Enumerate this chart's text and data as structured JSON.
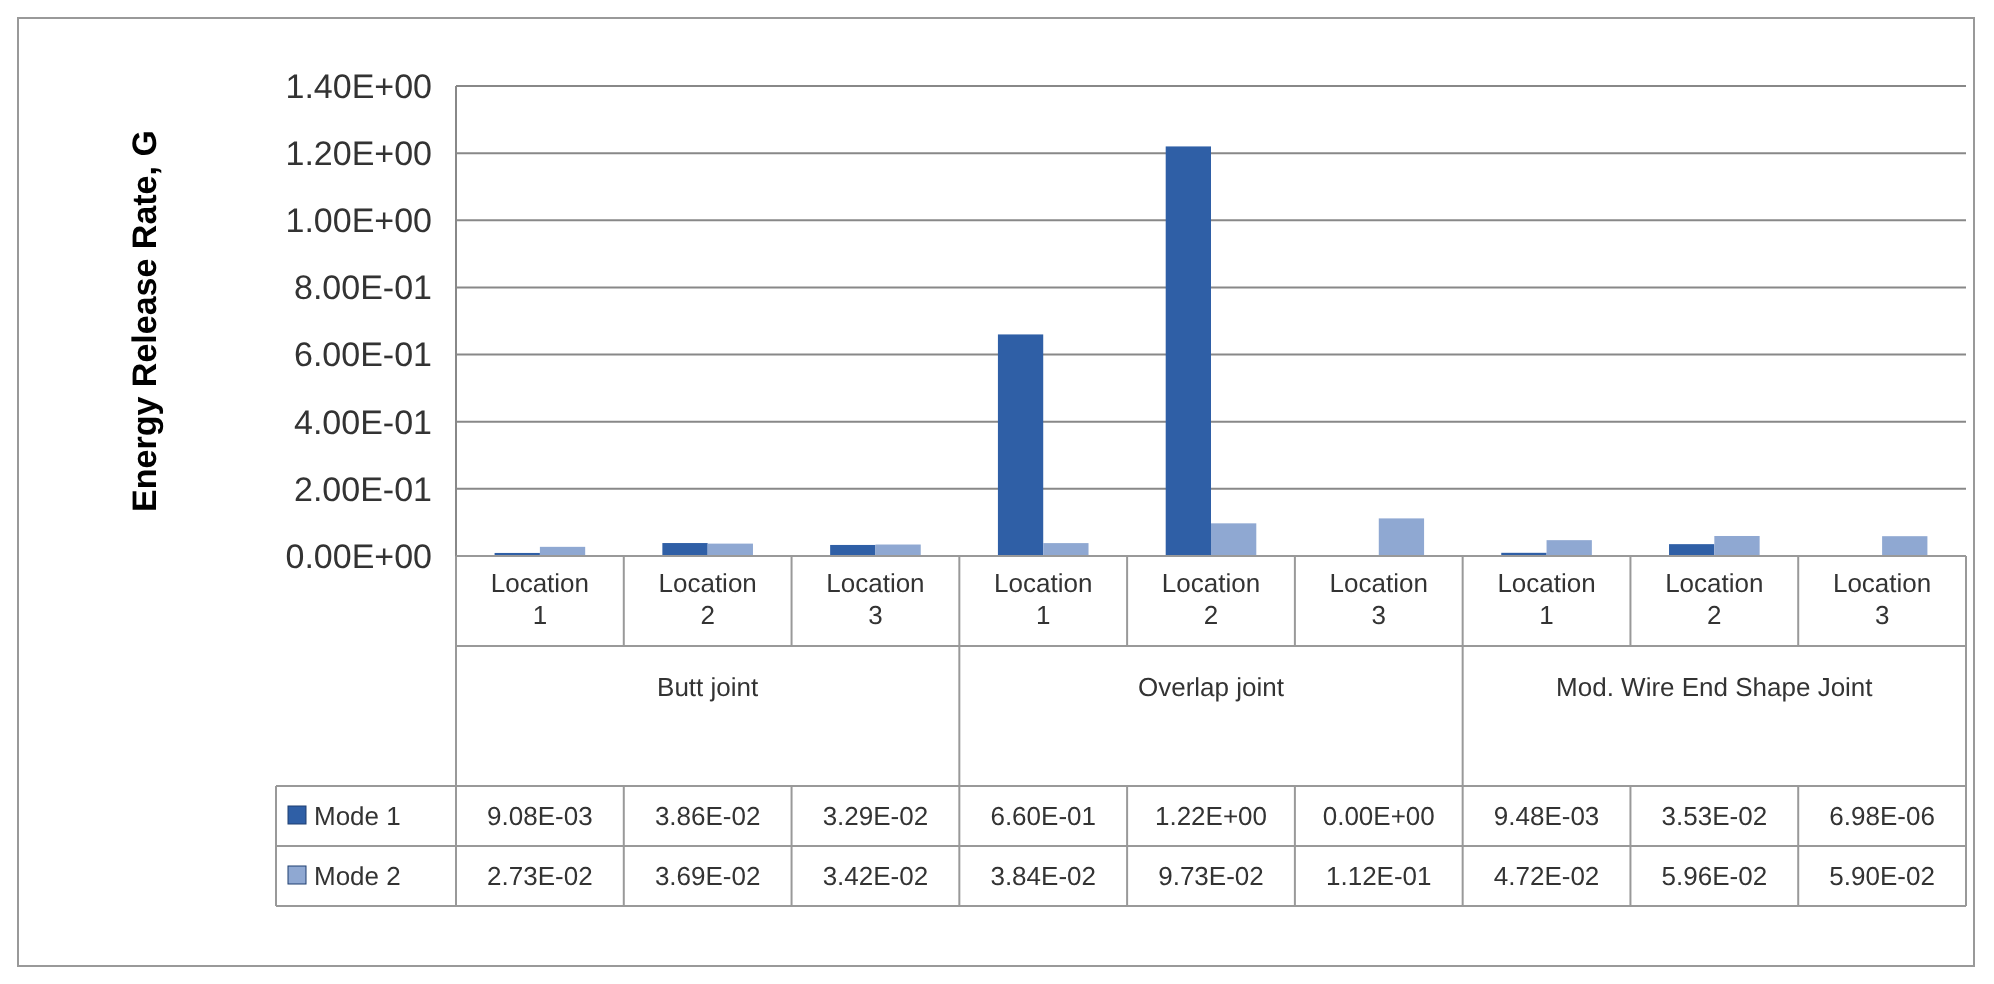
{
  "chart_data": {
    "type": "bar",
    "ylabel": "Energy Release Rate, G",
    "categories": [
      "Location 1",
      "Location 2",
      "Location 3",
      "Location 1",
      "Location 2",
      "Location 3",
      "Location 1",
      "Location 2",
      "Location 3"
    ],
    "series": [
      {
        "name": "Mode 1",
        "color": "#2f5fa6",
        "values": [
          0.00908,
          0.0386,
          0.0329,
          0.66,
          1.22,
          0,
          0.00948,
          0.0353,
          6.98e-06
        ],
        "value_labels": [
          "9.08E-03",
          "3.86E-02",
          "3.29E-02",
          "6.60E-01",
          "1.22E+00",
          "0.00E+00",
          "9.48E-03",
          "3.53E-02",
          "6.98E-06"
        ]
      },
      {
        "name": "Mode 2",
        "color": "#8fa8d2",
        "values": [
          0.0273,
          0.0369,
          0.0342,
          0.0384,
          0.0973,
          0.112,
          0.0472,
          0.0596,
          0.059
        ],
        "value_labels": [
          "2.73E-02",
          "3.69E-02",
          "3.42E-02",
          "3.84E-02",
          "9.73E-02",
          "1.12E-01",
          "4.72E-02",
          "5.96E-02",
          "5.90E-02"
        ]
      }
    ],
    "annotations": [
      "Butt joint",
      "Overlap joint",
      "Mod. Wire End Shape Joint"
    ],
    "ylim": [
      0,
      1.4
    ],
    "yticks": [
      {
        "value": 0,
        "label": "0.00E+00"
      },
      {
        "value": 0.2,
        "label": "2.00E-01"
      },
      {
        "value": 0.4,
        "label": "4.00E-01"
      },
      {
        "value": 0.6,
        "label": "6.00E-01"
      },
      {
        "value": 0.8,
        "label": "8.00E-01"
      },
      {
        "value": 1.0,
        "label": "1.00E+00"
      },
      {
        "value": 1.2,
        "label": "1.20E+00"
      },
      {
        "value": 1.4,
        "label": "1.40E+00"
      }
    ],
    "grid": "y",
    "legend": "bottom"
  }
}
